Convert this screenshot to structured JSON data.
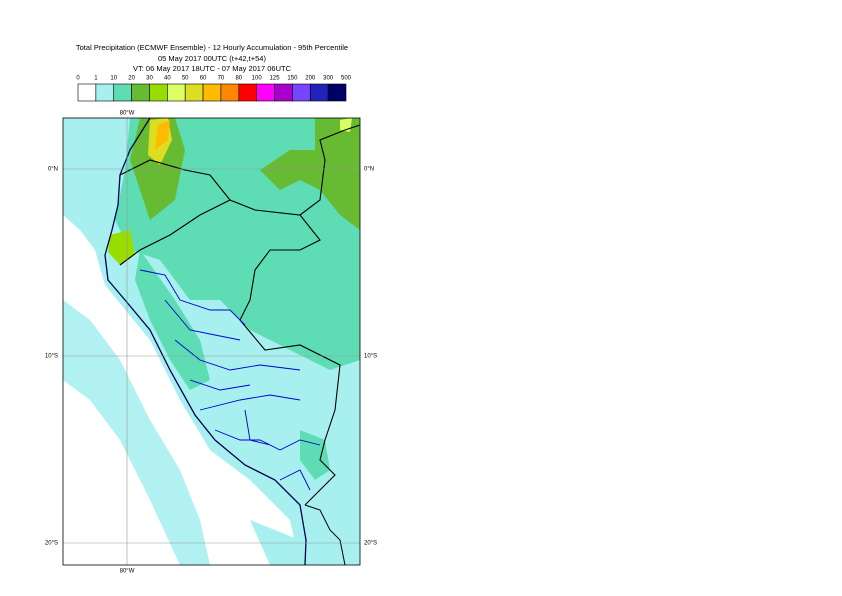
{
  "header": {
    "title": "Total Precipitation (ECMWF Ensemble) - 12 Hourly Accumulation - 95th Percentile",
    "run": "05 May 2017 00UTC (t+42,t+54)",
    "valid_time": "VT: 06 May 2017 18UTC - 07 May 2017 06UTC"
  },
  "legend": {
    "labels": [
      0,
      1,
      10,
      20,
      30,
      40,
      50,
      60,
      70,
      80,
      100,
      125,
      150,
      200,
      300,
      500
    ],
    "colors": [
      "#ffffff",
      "#a8f0f0",
      "#5edcb4",
      "#66bb33",
      "#99dd00",
      "#ddff66",
      "#dddd22",
      "#ffbb00",
      "#ff8800",
      "#ff0000",
      "#ff00ff",
      "#aa00cc",
      "#7744ff",
      "#2222bb",
      "#000066"
    ]
  },
  "map": {
    "lon_labels": [
      "80°W"
    ],
    "lat_labels": [
      "0°N",
      "10°S",
      "20°S"
    ]
  }
}
